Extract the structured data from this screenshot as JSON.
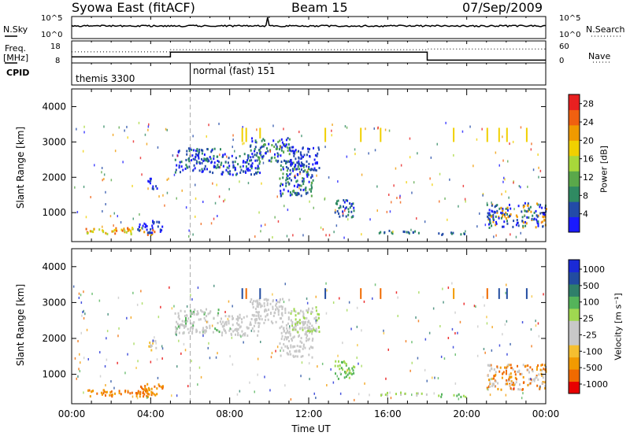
{
  "header": {
    "station": "Syowa East (fitACF)",
    "beam": "Beam 15",
    "date": "07/Sep/2009"
  },
  "colors": {
    "power": [
      "#1a1aff",
      "#234ba8",
      "#2f8a62",
      "#5aa84a",
      "#a8d83a",
      "#f0d000",
      "#f09a00",
      "#f06010",
      "#e82020"
    ],
    "velocity": [
      "#e80000",
      "#f06a00",
      "#f29a00",
      "#f5bf30",
      "#c8c8c8",
      "#c8c8c8",
      "#9fd850",
      "#54b45a",
      "#2f7f6a",
      "#224ca0",
      "#1a2ad6"
    ]
  },
  "chart_data": [
    {
      "name": "nsky-nsearch",
      "type": "line",
      "left_label": "N.Sky",
      "right_label": "N.Search",
      "left_ticks": [
        "10^5",
        "10^0"
      ],
      "right_ticks": [
        "10^5",
        "10^0"
      ]
    },
    {
      "name": "freq-nave",
      "type": "line",
      "left_label": "Freq.",
      "left_unit": "[MHz]",
      "right_label": "Nave",
      "left_ticks": [
        18,
        8
      ],
      "right_ticks": [
        60,
        0
      ],
      "ylim": [
        8,
        18
      ],
      "y2lim": [
        0,
        60
      ],
      "freq_series": [
        {
          "x": 0,
          "y": 10.8
        },
        {
          "x": 5,
          "y": 10.8
        },
        {
          "x": 5,
          "y": 12.9
        },
        {
          "x": 18,
          "y": 12.9
        },
        {
          "x": 18,
          "y": 9.3
        },
        {
          "x": 24,
          "y": 9.3
        }
      ],
      "nave_series": [
        {
          "x": 0,
          "y": 28
        },
        {
          "x": 5,
          "y": 28
        },
        {
          "x": 5,
          "y": 34
        },
        {
          "x": 18,
          "y": 34
        },
        {
          "x": 18,
          "y": 36
        },
        {
          "x": 24,
          "y": 36
        }
      ]
    },
    {
      "name": "cpid",
      "type": "table",
      "label": "CPID",
      "segments": [
        {
          "start": 0,
          "label": "themis 3300"
        },
        {
          "start": 6,
          "label": "normal (fast) 151"
        }
      ]
    },
    {
      "name": "power",
      "type": "heatmap",
      "ylabel": "Slant Range [km]",
      "ylim": [
        180,
        4500
      ],
      "yticks": [
        1000,
        2000,
        3000,
        4000
      ],
      "xlim": [
        0,
        24
      ],
      "colorbar_label": "Power [dB]",
      "colorbar_ticks": [
        4,
        8,
        12,
        16,
        20,
        24,
        28
      ],
      "colorbar_range": [
        0,
        30
      ],
      "features": [
        {
          "x": [
            0.7,
            4.2
          ],
          "r": [
            400,
            600
          ],
          "c": [
            5,
            6,
            7,
            4
          ]
        },
        {
          "x": [
            3.3,
            4.6
          ],
          "r": [
            450,
            800
          ],
          "c": [
            0,
            1
          ]
        },
        {
          "x": [
            5.2,
            7.5
          ],
          "r": [
            2150,
            2850
          ],
          "c": [
            0,
            1,
            2
          ]
        },
        {
          "x": [
            7.5,
            9.5
          ],
          "r": [
            2100,
            2700
          ],
          "c": [
            0,
            1,
            2
          ]
        },
        {
          "x": [
            9.0,
            11.0
          ],
          "r": [
            2450,
            3150
          ],
          "c": [
            0,
            1,
            2,
            3
          ]
        },
        {
          "x": [
            10.5,
            12.2
          ],
          "r": [
            1500,
            2500
          ],
          "c": [
            0,
            1,
            2,
            3
          ]
        },
        {
          "x": [
            11.0,
            12.5
          ],
          "r": [
            2200,
            2900
          ],
          "c": [
            0,
            1
          ]
        },
        {
          "x": [
            13.3,
            14.3
          ],
          "r": [
            900,
            1400
          ],
          "c": [
            0,
            1,
            2
          ]
        },
        {
          "x": [
            15.5,
            18.0
          ],
          "r": [
            430,
            520
          ],
          "c": [
            1,
            2
          ]
        },
        {
          "x": [
            18.5,
            20.0
          ],
          "r": [
            400,
            480
          ],
          "c": [
            2,
            1
          ]
        },
        {
          "x": [
            21.0,
            24.0
          ],
          "r": [
            600,
            1300
          ],
          "c": [
            0,
            1,
            2,
            6
          ]
        },
        {
          "x": [
            3.8,
            4.3
          ],
          "r": [
            1700,
            2000
          ],
          "c": [
            0,
            1
          ]
        }
      ],
      "streaks": [
        {
          "x": 8.6,
          "r": [
            3000,
            3400
          ],
          "c": 5
        },
        {
          "x": 8.8,
          "r": [
            3000,
            3400
          ],
          "c": 5
        },
        {
          "x": 9.5,
          "r": [
            3100,
            3400
          ],
          "c": 5
        },
        {
          "x": 12.8,
          "r": [
            3000,
            3400
          ],
          "c": 5
        },
        {
          "x": 14.6,
          "r": [
            3000,
            3400
          ],
          "c": 5
        },
        {
          "x": 15.6,
          "r": [
            3000,
            3400
          ],
          "c": 5
        },
        {
          "x": 19.3,
          "r": [
            3000,
            3400
          ],
          "c": 5
        },
        {
          "x": 21.0,
          "r": [
            3000,
            3400
          ],
          "c": 5
        },
        {
          "x": 21.6,
          "r": [
            3000,
            3400
          ],
          "c": 5
        },
        {
          "x": 22.0,
          "r": [
            3000,
            3400
          ],
          "c": 5
        },
        {
          "x": 23.0,
          "r": [
            3000,
            3400
          ],
          "c": 5
        }
      ]
    },
    {
      "name": "velocity",
      "type": "heatmap",
      "ylabel": "Slant Range [km]",
      "xlabel": "Time UT",
      "ylim": [
        180,
        4500
      ],
      "yticks": [
        1000,
        2000,
        3000,
        4000
      ],
      "xlim": [
        0,
        24
      ],
      "xticks": [
        "00:00",
        "04:00",
        "08:00",
        "12:00",
        "16:00",
        "20:00",
        "00:00"
      ],
      "colorbar_label": "Velocity [m s⁻¹]",
      "colorbar_ticks": [
        "1000",
        "500",
        "100",
        "25",
        "-25",
        "-100",
        "-500",
        "-1000"
      ],
      "features": [
        {
          "x": [
            0.7,
            4.2
          ],
          "r": [
            400,
            600
          ],
          "c": [
            1,
            2
          ]
        },
        {
          "x": [
            3.3,
            4.6
          ],
          "r": [
            450,
            800
          ],
          "c": [
            1,
            2
          ]
        },
        {
          "x": [
            5.2,
            7.5
          ],
          "r": [
            2150,
            2850
          ],
          "c": [
            4,
            4,
            5,
            7
          ]
        },
        {
          "x": [
            7.5,
            9.5
          ],
          "r": [
            2100,
            2700
          ],
          "c": [
            4,
            5
          ]
        },
        {
          "x": [
            9.0,
            11.0
          ],
          "r": [
            2450,
            3150
          ],
          "c": [
            4,
            5
          ]
        },
        {
          "x": [
            10.5,
            12.2
          ],
          "r": [
            1500,
            2500
          ],
          "c": [
            4,
            5
          ]
        },
        {
          "x": [
            11.0,
            12.5
          ],
          "r": [
            2200,
            2900
          ],
          "c": [
            4,
            6
          ]
        },
        {
          "x": [
            13.3,
            14.3
          ],
          "r": [
            900,
            1400
          ],
          "c": [
            6,
            7
          ]
        },
        {
          "x": [
            15.5,
            18.0
          ],
          "r": [
            430,
            520
          ],
          "c": [
            4,
            6
          ]
        },
        {
          "x": [
            18.5,
            20.0
          ],
          "r": [
            400,
            480
          ],
          "c": [
            6,
            7
          ]
        },
        {
          "x": [
            21.0,
            24.0
          ],
          "r": [
            600,
            1300
          ],
          "c": [
            4,
            2,
            1
          ]
        },
        {
          "x": [
            3.8,
            4.3
          ],
          "r": [
            1700,
            2000
          ],
          "c": [
            4,
            3
          ]
        }
      ],
      "streaks": [
        {
          "x": 8.6,
          "r": [
            3100,
            3400
          ],
          "c": 9
        },
        {
          "x": 8.8,
          "r": [
            3100,
            3400
          ],
          "c": 1
        },
        {
          "x": 9.5,
          "r": [
            3100,
            3400
          ],
          "c": 9
        },
        {
          "x": 12.8,
          "r": [
            3100,
            3400
          ],
          "c": 9
        },
        {
          "x": 14.6,
          "r": [
            3100,
            3400
          ],
          "c": 1
        },
        {
          "x": 15.6,
          "r": [
            3100,
            3400
          ],
          "c": 1
        },
        {
          "x": 19.3,
          "r": [
            3100,
            3400
          ],
          "c": 2
        },
        {
          "x": 21.0,
          "r": [
            3100,
            3400
          ],
          "c": 1
        },
        {
          "x": 21.6,
          "r": [
            3100,
            3400
          ],
          "c": 9
        },
        {
          "x": 22.0,
          "r": [
            3100,
            3400
          ],
          "c": 9
        },
        {
          "x": 23.0,
          "r": [
            3100,
            3400
          ],
          "c": 9
        }
      ]
    }
  ]
}
